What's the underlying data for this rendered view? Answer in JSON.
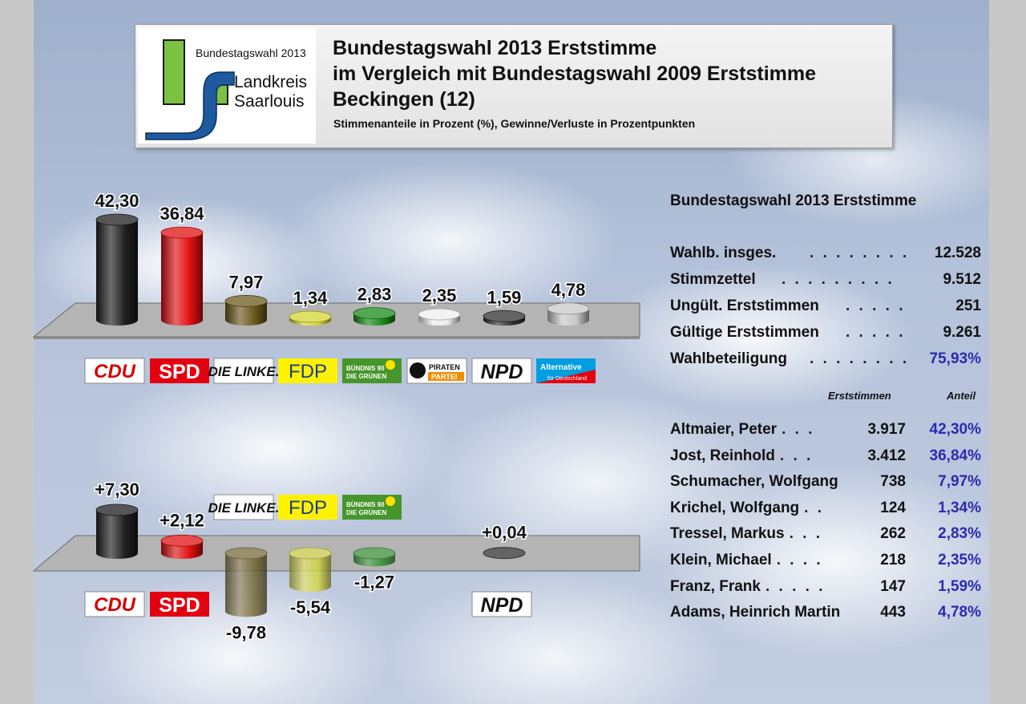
{
  "header": {
    "title_line1": "Bundestagswahl 2013 Erststimme",
    "title_line2": "im Vergleich mit Bundestagswahl 2009 Erststimme",
    "title_line3": "Beckingen (12)",
    "subtitle": "Stimmenanteile in Prozent (%), Gewinne/Verluste in Prozentpunkten"
  },
  "logo": {
    "caption": "Bundestagswahl 2013",
    "line1": "Landkreis",
    "line2": "Saarlouis"
  },
  "colors": {
    "CDU": "#1e1e1e",
    "SPD": "#e01010",
    "DIE LINKE.": "#6b5a1e",
    "FDP": "#d6d630",
    "GRÜNE": "#1a8a1a",
    "PIRATEN": "#eeeeee",
    "NPD": "#303030",
    "AfD": "#c8c8c8",
    "percent_text": "#2b2bb0"
  },
  "chart_data": [
    {
      "type": "bar",
      "categories": [
        "CDU",
        "SPD",
        "DIE LINKE.",
        "FDP",
        "GRÜNE",
        "PIRATEN",
        "NPD",
        "AfD"
      ],
      "values": [
        42.3,
        36.84,
        7.97,
        1.34,
        2.83,
        2.35,
        1.59,
        4.78
      ],
      "labels": [
        "42,30",
        "36,84",
        "7,97",
        "1,34",
        "2,83",
        "2,35",
        "1,59",
        "4,78"
      ],
      "ylim": [
        0,
        45
      ]
    },
    {
      "type": "bar",
      "categories": [
        "CDU",
        "SPD",
        "DIE LINKE.",
        "FDP",
        "GRÜNE",
        "NPD"
      ],
      "values": [
        7.3,
        2.12,
        -9.78,
        -5.54,
        -1.27,
        0.04
      ],
      "labels": [
        "+7,30",
        "+2,12",
        "-9,78",
        "-5,54",
        "-1,27",
        "+0,04"
      ],
      "ylim": [
        -10,
        8
      ]
    }
  ],
  "party_logos": {
    "CDU": "CDU",
    "SPD": "SPD",
    "LINKE": "DIE LINKE.",
    "FDP": "FDP",
    "GRUENE_1": "BÜNDNIS 90",
    "GRUENE_2": "DIE GRÜNEN",
    "PIRATEN_1": "PIRATEN",
    "PIRATEN_2": "PARTEI",
    "NPD": "NPD",
    "AFD_1": "Alternative",
    "AFD_2": "für Deutschland"
  },
  "summary": {
    "title": "Bundestagswahl 2013 Erststimme",
    "rows": [
      {
        "label": "Wahlb. insges.",
        "value": "12.528"
      },
      {
        "label": "Stimmzettel",
        "value": "9.512"
      },
      {
        "label": "Ungült. Erststimmen",
        "value": "251"
      },
      {
        "label": "Gültige Erststimmen",
        "value": "9.261"
      },
      {
        "label": "Wahlbeteiligung",
        "value": "75,93%"
      }
    ]
  },
  "candidates": {
    "col_votes": "Erststimmen",
    "col_share": "Anteil",
    "rows": [
      {
        "name": "Altmaier, Peter",
        "votes": "3.917",
        "share": "42,30%"
      },
      {
        "name": "Jost, Reinhold",
        "votes": "3.412",
        "share": "36,84%"
      },
      {
        "name": "Schumacher, Wolfgang",
        "votes": "738",
        "share": "7,97%"
      },
      {
        "name": "Krichel, Wolfgang",
        "votes": "124",
        "share": "1,34%"
      },
      {
        "name": "Tressel, Markus",
        "votes": "262",
        "share": "2,83%"
      },
      {
        "name": "Klein, Michael",
        "votes": "218",
        "share": "2,35%"
      },
      {
        "name": "Franz, Frank",
        "votes": "147",
        "share": "1,59%"
      },
      {
        "name": "Adams, Heinrich Martin",
        "votes": "443",
        "share": "4,78%"
      }
    ]
  }
}
